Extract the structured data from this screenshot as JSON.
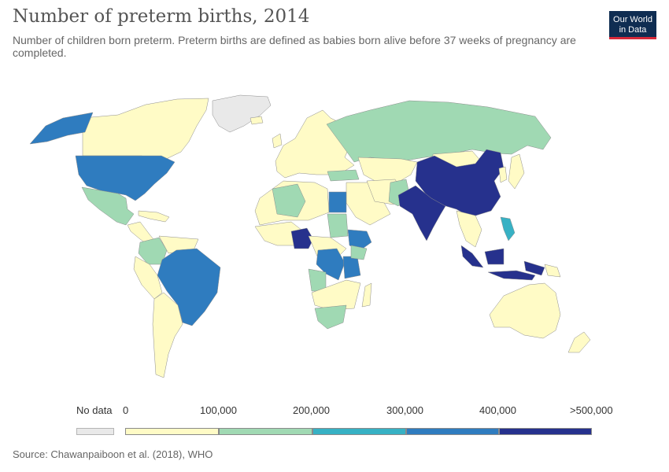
{
  "header": {
    "title": "Number of preterm births, 2014",
    "subtitle": "Number of children born preterm. Preterm births are defined as babies born alive before 37 weeks of pregnancy are completed."
  },
  "logo": {
    "line1": "Our World",
    "line2": "in Data"
  },
  "legend": {
    "nodata_label": "No data",
    "nodata_color": "#e9e9e9",
    "tick_labels": [
      "0",
      "100,000",
      "200,000",
      "300,000",
      "400,000",
      ">500,000"
    ],
    "bin_colors": [
      "#fffbc6",
      "#a0d9b3",
      "#37b1c4",
      "#2f7cbf",
      "#26318d"
    ]
  },
  "source": "Source: Chawanpaiboon et al. (2018), WHO"
}
